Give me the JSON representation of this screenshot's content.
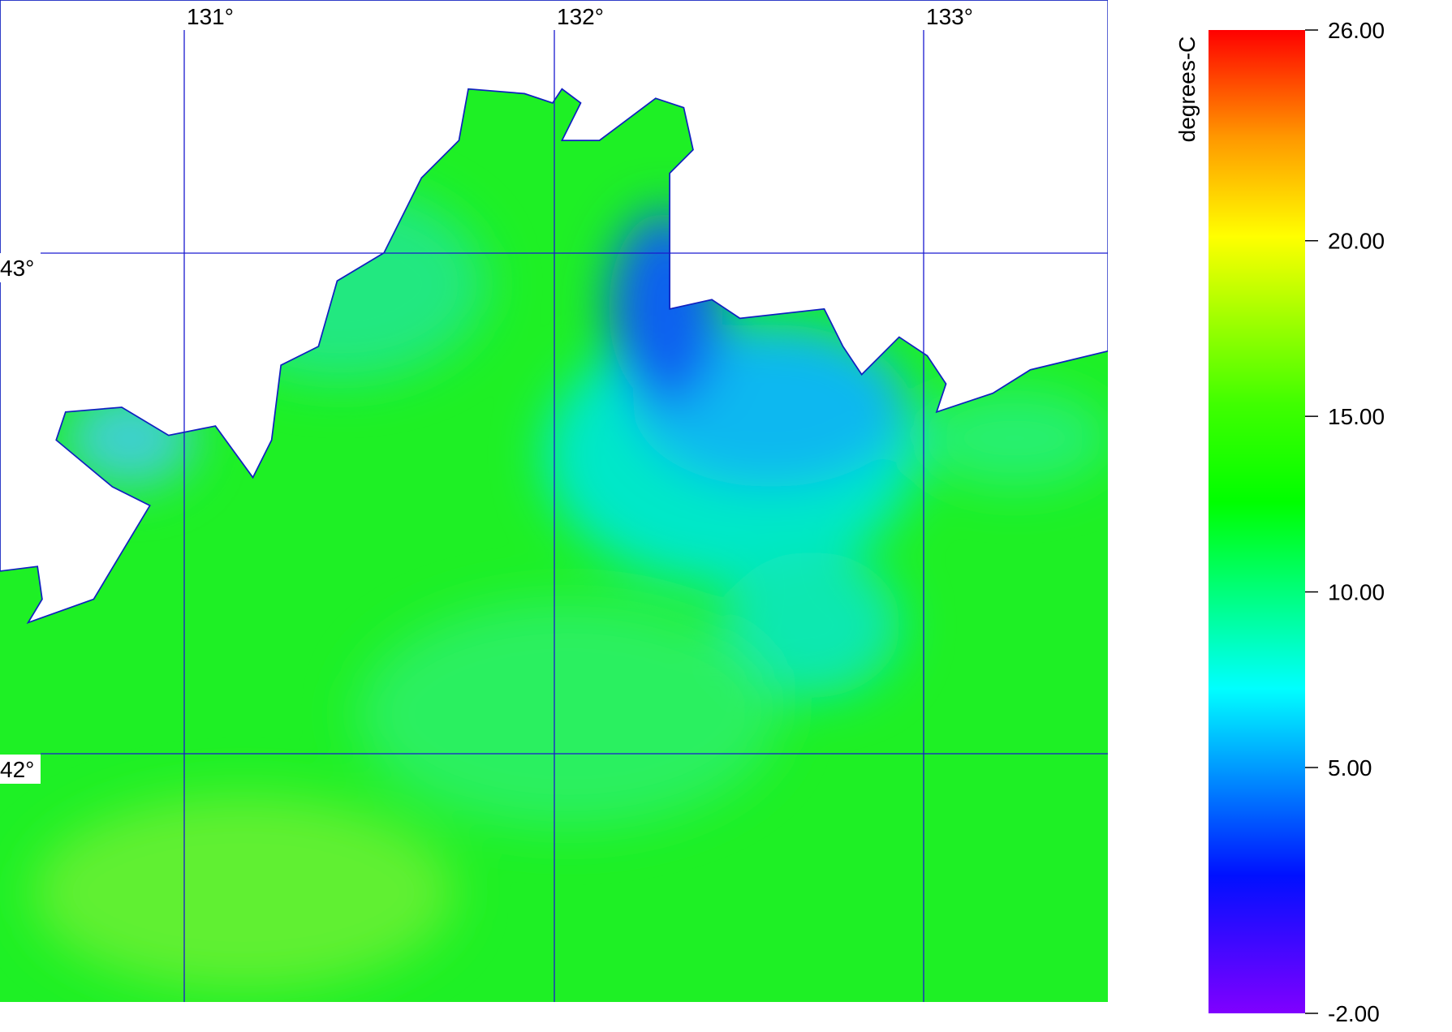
{
  "map": {
    "longitude_labels": [
      "131°",
      "132°",
      "133°"
    ],
    "latitude_labels": [
      "43°",
      "42°"
    ],
    "colorbar": {
      "label": "degrees-C",
      "lim": [
        -2,
        26
      ],
      "ticks": [
        {
          "value": 26,
          "label": "26.00"
        },
        {
          "value": 20,
          "label": "20.00"
        },
        {
          "value": 15,
          "label": "15.00"
        },
        {
          "value": 10,
          "label": "10.00"
        },
        {
          "value": 5,
          "label": "5.00"
        },
        {
          "value": -2,
          "label": "-2.00"
        }
      ]
    }
  }
}
